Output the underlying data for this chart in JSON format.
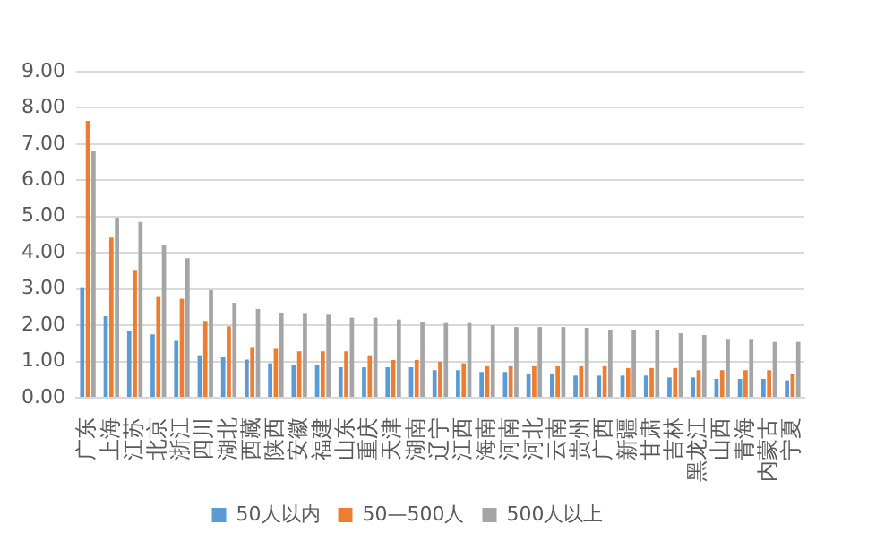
{
  "chart_data": {
    "type": "bar",
    "categories": [
      "广东",
      "上海",
      "江苏",
      "北京",
      "浙江",
      "四川",
      "湖北",
      "西藏",
      "陕西",
      "安徽",
      "福建",
      "山东",
      "重庆",
      "天津",
      "湖南",
      "辽宁",
      "江西",
      "海南",
      "河南",
      "河北",
      "云南",
      "贵州",
      "广西",
      "新疆",
      "甘肃",
      "吉林",
      "黑龙江",
      "山西",
      "青海",
      "内蒙古",
      "宁夏"
    ],
    "series": [
      {
        "name": "50人以内",
        "color": "#5b9bd5",
        "values": [
          3.05,
          2.25,
          1.85,
          1.75,
          1.57,
          1.17,
          1.12,
          1.05,
          0.95,
          0.89,
          0.89,
          0.84,
          0.84,
          0.84,
          0.84,
          0.76,
          0.76,
          0.71,
          0.71,
          0.67,
          0.67,
          0.61,
          0.61,
          0.61,
          0.61,
          0.56,
          0.56,
          0.52,
          0.52,
          0.52,
          0.48
        ]
      },
      {
        "name": "50—500人",
        "color": "#ed7d31",
        "values": [
          7.64,
          4.42,
          3.53,
          2.78,
          2.73,
          2.12,
          1.97,
          1.4,
          1.35,
          1.28,
          1.28,
          1.28,
          1.17,
          1.04,
          1.04,
          0.99,
          0.95,
          0.87,
          0.87,
          0.87,
          0.87,
          0.87,
          0.87,
          0.82,
          0.82,
          0.82,
          0.76,
          0.76,
          0.76,
          0.76,
          0.65
        ]
      },
      {
        "name": "500人以上",
        "color": "#a5a5a5",
        "values": [
          6.8,
          4.97,
          4.85,
          4.22,
          3.85,
          2.97,
          2.62,
          2.45,
          2.35,
          2.34,
          2.29,
          2.21,
          2.21,
          2.16,
          2.1,
          2.06,
          2.06,
          2.0,
          1.95,
          1.95,
          1.95,
          1.93,
          1.88,
          1.88,
          1.88,
          1.78,
          1.73,
          1.6,
          1.6,
          1.54,
          1.54
        ]
      }
    ],
    "ylim": [
      0,
      9
    ],
    "yticks": [
      {
        "value": 0,
        "label": "0.00"
      },
      {
        "value": 1,
        "label": "1.00"
      },
      {
        "value": 2,
        "label": "2.00"
      },
      {
        "value": 3,
        "label": "3.00"
      },
      {
        "value": 4,
        "label": "4.00"
      },
      {
        "value": 5,
        "label": "5.00"
      },
      {
        "value": 6,
        "label": "6.00"
      },
      {
        "value": 7,
        "label": "7.00"
      },
      {
        "value": 8,
        "label": "8.00"
      },
      {
        "value": 9,
        "label": "9.00"
      }
    ],
    "grid": "y",
    "legend": "bottom"
  }
}
